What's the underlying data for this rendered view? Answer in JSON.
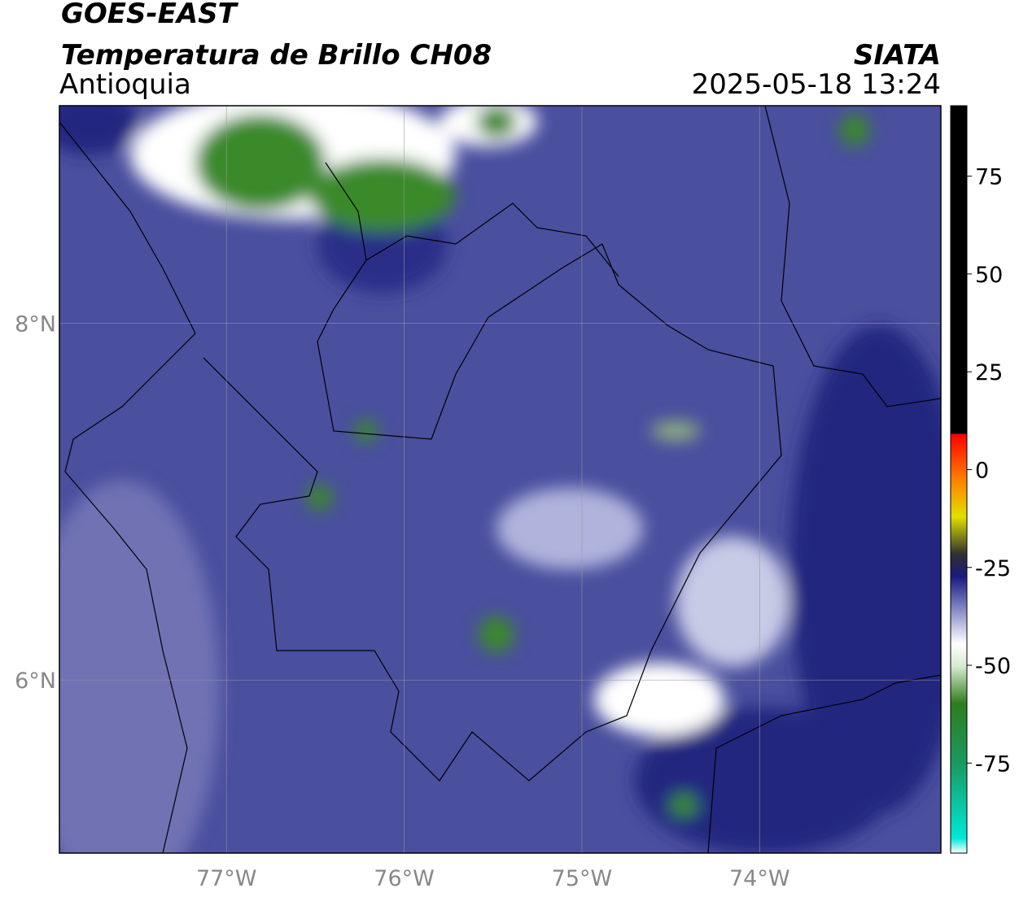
{
  "header": {
    "title": "GOES-EAST",
    "subtitle": "Temperatura de Brillo CH08",
    "region": "Antioquia",
    "source": "SIATA",
    "datetime": "2025-05-18 13:24"
  },
  "map": {
    "lonlim": [
      -77.94,
      -72.98
    ],
    "latlim": [
      5.03,
      9.22
    ],
    "lon_ticks": [
      {
        "value": -77,
        "label": "77°W"
      },
      {
        "value": -76,
        "label": "76°W"
      },
      {
        "value": -75,
        "label": "75°W"
      },
      {
        "value": -74,
        "label": "74°W"
      }
    ],
    "lat_ticks": [
      {
        "value": 8,
        "label": "8°N"
      },
      {
        "value": 6,
        "label": "6°N"
      }
    ]
  },
  "colorbar": {
    "range": [
      -98,
      93
    ],
    "ticks": [
      75,
      50,
      25,
      0,
      -25,
      -50,
      -75
    ]
  }
}
